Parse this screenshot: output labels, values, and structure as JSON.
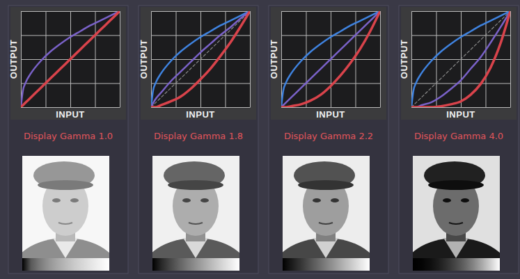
{
  "chart_data": [
    {
      "type": "line",
      "title": "Display Gamma 1.0",
      "xlabel": "INPUT",
      "ylabel": "OUTPUT",
      "x": [
        0,
        0.02,
        0.05,
        0.1,
        0.2,
        0.3,
        0.4,
        0.5,
        0.6,
        0.7,
        0.8,
        0.9,
        1
      ],
      "xlim": [
        0,
        1
      ],
      "ylim": [
        0,
        1
      ],
      "xticks": [
        0,
        0.25,
        0.5,
        0.75,
        1
      ],
      "yticks": [
        0,
        0.25,
        0.5,
        0.75,
        1
      ],
      "grid": true,
      "tick_labels": false,
      "series": [
        {
          "color": "#7a62c9",
          "line_style": "solid",
          "values": [
            0,
            0.17,
            0.26,
            0.35,
            0.48,
            0.58,
            0.66,
            0.73,
            0.79,
            0.85,
            0.9,
            0.95,
            1
          ]
        },
        {
          "color": "#d9434b",
          "line_style": "solid",
          "values": [
            0,
            0.02,
            0.05,
            0.1,
            0.2,
            0.3,
            0.4,
            0.5,
            0.6,
            0.7,
            0.8,
            0.9,
            1
          ]
        }
      ]
    },
    {
      "type": "line",
      "title": "Display Gamma 1.8",
      "xlabel": "INPUT",
      "ylabel": "OUTPUT",
      "x": [
        0,
        0.02,
        0.05,
        0.1,
        0.2,
        0.3,
        0.4,
        0.5,
        0.6,
        0.7,
        0.8,
        0.9,
        1
      ],
      "xlim": [
        0,
        1
      ],
      "ylim": [
        0,
        1
      ],
      "xticks": [
        0,
        0.25,
        0.5,
        0.75,
        1
      ],
      "yticks": [
        0,
        0.25,
        0.5,
        0.75,
        1
      ],
      "grid": true,
      "tick_labels": false,
      "series": [
        {
          "color": "#8a8a8a",
          "line_style": "dashed",
          "values": [
            0,
            0.02,
            0.05,
            0.1,
            0.2,
            0.3,
            0.4,
            0.5,
            0.6,
            0.7,
            0.8,
            0.9,
            1
          ]
        },
        {
          "color": "#3f83e0",
          "line_style": "solid",
          "values": [
            0,
            0.17,
            0.26,
            0.35,
            0.48,
            0.58,
            0.66,
            0.73,
            0.79,
            0.85,
            0.9,
            0.95,
            1
          ]
        },
        {
          "color": "#7a62c9",
          "line_style": "solid",
          "values": [
            0,
            0.04,
            0.09,
            0.15,
            0.27,
            0.37,
            0.47,
            0.57,
            0.66,
            0.75,
            0.83,
            0.92,
            1
          ]
        },
        {
          "color": "#d9434b",
          "line_style": "solid",
          "values": [
            0,
            0,
            0,
            0.02,
            0.06,
            0.11,
            0.19,
            0.29,
            0.4,
            0.53,
            0.67,
            0.83,
            1
          ]
        }
      ]
    },
    {
      "type": "line",
      "title": "Display Gamma 2.2",
      "xlabel": "INPUT",
      "ylabel": "OUTPUT",
      "x": [
        0,
        0.02,
        0.05,
        0.1,
        0.2,
        0.3,
        0.4,
        0.5,
        0.6,
        0.7,
        0.8,
        0.9,
        1
      ],
      "xlim": [
        0,
        1
      ],
      "ylim": [
        0,
        1
      ],
      "xticks": [
        0,
        0.25,
        0.5,
        0.75,
        1
      ],
      "yticks": [
        0,
        0.25,
        0.5,
        0.75,
        1
      ],
      "grid": true,
      "tick_labels": false,
      "series": [
        {
          "color": "#3f83e0",
          "line_style": "solid",
          "values": [
            0,
            0.17,
            0.26,
            0.35,
            0.48,
            0.58,
            0.66,
            0.73,
            0.79,
            0.85,
            0.9,
            0.95,
            1
          ]
        },
        {
          "color": "#7a62c9",
          "line_style": "solid",
          "values": [
            0,
            0.02,
            0.05,
            0.1,
            0.2,
            0.3,
            0.4,
            0.5,
            0.6,
            0.7,
            0.8,
            0.9,
            1
          ]
        },
        {
          "color": "#d9434b",
          "line_style": "solid",
          "values": [
            0,
            0,
            0,
            0.01,
            0.03,
            0.07,
            0.13,
            0.22,
            0.33,
            0.46,
            0.61,
            0.79,
            1
          ]
        }
      ]
    },
    {
      "type": "line",
      "title": "Display Gamma 4.0",
      "xlabel": "INPUT",
      "ylabel": "OUTPUT",
      "x": [
        0,
        0.02,
        0.05,
        0.1,
        0.2,
        0.3,
        0.4,
        0.5,
        0.6,
        0.7,
        0.8,
        0.9,
        1
      ],
      "xlim": [
        0,
        1
      ],
      "ylim": [
        0,
        1
      ],
      "xticks": [
        0,
        0.25,
        0.5,
        0.75,
        1
      ],
      "yticks": [
        0,
        0.25,
        0.5,
        0.75,
        1
      ],
      "grid": true,
      "tick_labels": false,
      "series": [
        {
          "color": "#8a8a8a",
          "line_style": "dashed",
          "values": [
            0,
            0.02,
            0.05,
            0.1,
            0.2,
            0.3,
            0.4,
            0.5,
            0.6,
            0.7,
            0.8,
            0.9,
            1
          ]
        },
        {
          "color": "#3f83e0",
          "line_style": "solid",
          "values": [
            0,
            0.17,
            0.26,
            0.35,
            0.48,
            0.58,
            0.66,
            0.73,
            0.79,
            0.85,
            0.9,
            0.95,
            1
          ]
        },
        {
          "color": "#7a62c9",
          "line_style": "solid",
          "values": [
            0,
            0,
            0,
            0.02,
            0.05,
            0.11,
            0.19,
            0.28,
            0.4,
            0.52,
            0.67,
            0.83,
            1
          ]
        },
        {
          "color": "#d9434b",
          "line_style": "solid",
          "values": [
            0,
            0,
            0,
            0,
            0,
            0.01,
            0.03,
            0.06,
            0.13,
            0.24,
            0.41,
            0.66,
            1
          ]
        }
      ]
    }
  ]
}
